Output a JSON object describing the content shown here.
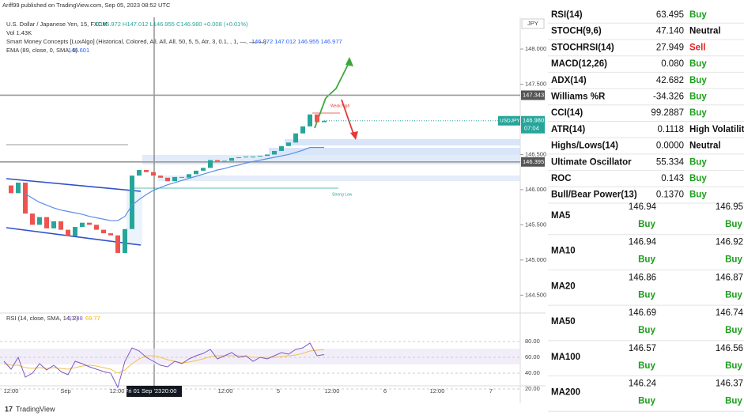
{
  "header": {
    "publisher": "Ariff99 published on TradingView.com, Sep 05, 2023 08:52 UTC",
    "symbol": "U.S. Dollar / Japanese Yen, 15, FXCM",
    "ohlc": "O146.972 H147.012 L146.955 C146.980 +0.008 (+0.01%)",
    "volume": "Vol 1.43K",
    "smc": "Smart Money Concepts [LuxAlgo] (Historical, Colored, All, All, All, 50, 5, 5, Atr, 3, 0.1, , 1, —, —, —)",
    "smc_values": "146.972 147.012 146.955 146.977",
    "ema": "EMA (89, close, 0, SMA, 5)",
    "ema_value": "146.601"
  },
  "chart": {
    "type": "candlestick",
    "currency": "JPY",
    "ylim": [
      144.29,
      148.45
    ],
    "yticks": [
      {
        "value": 144.5,
        "label": "144.500"
      },
      {
        "value": 145,
        "label": "145.000"
      },
      {
        "value": 145.5,
        "label": "145.500"
      },
      {
        "value": 146,
        "label": "146.000"
      },
      {
        "value": 146.5,
        "label": "146.500"
      },
      {
        "value": 147.5,
        "label": "147.500"
      },
      {
        "value": 148,
        "label": "148.000"
      }
    ],
    "levels": [
      {
        "value": 147.343,
        "label": "147.343"
      },
      {
        "value": 146.395,
        "label": "146.395"
      }
    ],
    "last": {
      "symbol": "USDJPY",
      "price": "146.980",
      "countdown": "07:04"
    },
    "xticks": [
      "12:00",
      "Sep",
      "12:00",
      "Fri 01 Sep '23",
      "20:00",
      "12:00",
      "5",
      "12:00",
      "6",
      "12:00",
      "7"
    ],
    "annotations": [
      "Weak High",
      "Strong Low"
    ],
    "close": [
      146.06,
      145.95,
      146.1,
      145.66,
      145.5,
      145.61,
      145.45,
      145.55,
      145.43,
      145.34,
      145.47,
      145.53,
      145.5,
      145.43,
      145.38,
      145.35,
      145.1,
      145.44,
      146.2,
      146.28,
      146.25,
      146.2,
      146.17,
      146.12,
      146.18,
      146.17,
      146.22,
      146.27,
      146.31,
      146.42,
      146.4,
      146.41,
      146.45,
      146.46,
      146.47,
      146.47,
      146.48,
      146.5,
      146.55,
      146.62,
      146.67,
      146.8,
      146.9,
      147.07,
      146.96,
      146.98
    ],
    "ema": [
      null,
      null,
      null,
      145.94,
      145.88,
      145.82,
      145.78,
      145.74,
      145.71,
      145.69,
      145.67,
      145.65,
      145.62,
      145.6,
      145.58,
      145.56,
      145.56,
      145.62,
      145.78,
      145.86,
      145.93,
      145.99,
      146.03,
      146.07,
      146.1,
      146.13,
      146.16,
      146.19,
      146.22,
      146.25,
      146.28,
      146.3,
      146.33,
      146.35,
      146.38,
      146.4,
      146.42,
      146.44,
      146.46,
      146.48,
      146.5,
      146.53,
      146.56,
      146.6,
      146.6,
      146.6
    ]
  },
  "rsi": {
    "label": "RSI (14, close, SMA, 14, 2)",
    "ylim": [
      18,
      114
    ],
    "yticks": [
      {
        "value": 20,
        "label": "20.00"
      },
      {
        "value": 40,
        "label": "40.00"
      },
      {
        "value": 60,
        "label": "60.00"
      },
      {
        "value": 80,
        "label": "80.00"
      }
    ],
    "values": [
      55,
      45,
      60,
      35,
      40,
      52,
      44,
      50,
      42,
      38,
      55,
      52,
      48,
      45,
      42,
      40,
      22,
      55,
      72,
      68,
      60,
      55,
      50,
      48,
      55,
      52,
      58,
      62,
      65,
      70,
      58,
      62,
      66,
      60,
      62,
      55,
      60,
      58,
      62,
      66,
      64,
      70,
      72,
      78,
      62,
      63.48
    ],
    "sma": [
      52,
      50,
      50,
      47,
      46,
      47,
      46,
      47,
      46,
      45,
      47,
      49,
      50,
      49,
      47,
      45,
      40,
      44,
      52,
      58,
      62,
      62,
      60,
      57,
      55,
      53,
      54,
      56,
      58,
      61,
      62,
      62,
      62,
      62,
      61,
      60,
      60,
      60,
      60,
      61,
      62,
      63,
      65,
      68,
      69,
      69.77
    ]
  },
  "indicators": {
    "rows": [
      [
        "RSI(14)",
        "63.495",
        "Buy"
      ],
      [
        "STOCH(9,6)",
        "47.140",
        "Neutral"
      ],
      [
        "STOCHRSI(14)",
        "27.949",
        "Sell"
      ],
      [
        "MACD(12,26)",
        "0.080",
        "Buy"
      ],
      [
        "ADX(14)",
        "42.682",
        "Buy"
      ],
      [
        "Williams %R",
        "-34.326",
        "Buy"
      ],
      [
        "CCI(14)",
        "99.2887",
        "Buy"
      ],
      [
        "ATR(14)",
        "0.1118",
        "High Volatility"
      ],
      [
        "Highs/Lows(14)",
        "0.0000",
        "Neutral"
      ],
      [
        "Ultimate Oscillator",
        "55.334",
        "Buy"
      ],
      [
        "ROC",
        "0.143",
        "Buy"
      ],
      [
        "Bull/Bear Power(13)",
        "0.1370",
        "Buy"
      ]
    ]
  },
  "moving_averages": {
    "rows": [
      [
        "MA5",
        "146.94",
        "Buy",
        "146.95",
        "Buy"
      ],
      [
        "MA10",
        "146.94",
        "Buy",
        "146.92",
        "Buy"
      ],
      [
        "MA20",
        "146.86",
        "Buy",
        "146.87",
        "Buy"
      ],
      [
        "MA50",
        "146.69",
        "Buy",
        "146.74",
        "Buy"
      ],
      [
        "MA100",
        "146.57",
        "Buy",
        "146.56",
        "Buy"
      ],
      [
        "MA200",
        "146.24",
        "Buy",
        "146.37",
        "Buy"
      ]
    ]
  },
  "footer": "TradingView"
}
